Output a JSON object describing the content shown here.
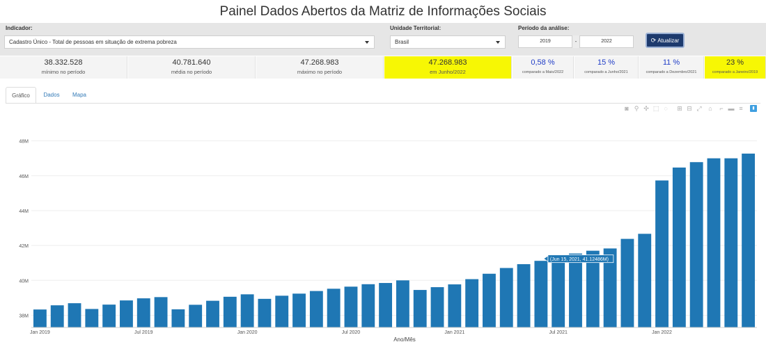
{
  "page": {
    "title": "Painel Dados Abertos da Matriz de Informações Sociais"
  },
  "filters": {
    "indicator_label": "Indicador:",
    "indicator_value": "Cadastro Único - Total de pessoas em situação de extrema pobreza",
    "territory_label": "Unidade Territorial:",
    "territory_value": "Brasil",
    "period_label": "Período da análise:",
    "period_start": "2019",
    "period_sep": "-",
    "period_end": "2022",
    "update_button": "Atualizar"
  },
  "stats": [
    {
      "value": "38.332.528",
      "label": "mínimo no período"
    },
    {
      "value": "40.781.640",
      "label": "média no período"
    },
    {
      "value": "47.268.983",
      "label": "máximo no período"
    },
    {
      "value": "47.268.983",
      "label": "em Junho/2022"
    },
    {
      "value": "0,58 %",
      "label": "comparado a Maio/2022"
    },
    {
      "value": "15 %",
      "label": "comparado a Junho/2021"
    },
    {
      "value": "11 %",
      "label": "comparado a Dezembro/2021"
    },
    {
      "value": "23 %",
      "label": "comparado a Janeiro/2019"
    }
  ],
  "tabs": [
    {
      "label": "Gráfico"
    },
    {
      "label": "Dados"
    },
    {
      "label": "Mapa"
    }
  ],
  "colors": {
    "bar": "#1f77b4",
    "highlight": "#f7f704",
    "accent": "#1f3cc7",
    "button": "#1d3a6d"
  },
  "modebar_icons": [
    "camera-icon",
    "zoom-icon",
    "pan-icon",
    "box-select-icon",
    "lasso-icon",
    "zoom-in-icon",
    "zoom-out-icon",
    "autoscale-icon",
    "reset-axes-icon",
    "spike-lines-icon",
    "hover-closest-icon",
    "hover-compare-icon",
    "plotly-logo-icon"
  ],
  "chart_data": {
    "type": "bar",
    "xlabel": "Ano/Mês",
    "ylabel": "",
    "ylim": [
      37.3,
      49.5
    ],
    "y_ticks": [
      38,
      40,
      42,
      44,
      46,
      48
    ],
    "y_tick_labels": [
      "38M",
      "40M",
      "42M",
      "44M",
      "46M",
      "48M"
    ],
    "x_tick_labels": [
      {
        "index": 0,
        "label": "Jan 2019"
      },
      {
        "index": 6,
        "label": "Jul 2019"
      },
      {
        "index": 12,
        "label": "Jan 2020"
      },
      {
        "index": 18,
        "label": "Jul 2020"
      },
      {
        "index": 24,
        "label": "Jan 2021"
      },
      {
        "index": 30,
        "label": "Jul 2021"
      },
      {
        "index": 36,
        "label": "Jan 2022"
      }
    ],
    "categories": [
      "2019-01",
      "2019-02",
      "2019-03",
      "2019-04",
      "2019-05",
      "2019-06",
      "2019-07",
      "2019-08",
      "2019-09",
      "2019-10",
      "2019-11",
      "2019-12",
      "2020-01",
      "2020-02",
      "2020-03",
      "2020-04",
      "2020-05",
      "2020-06",
      "2020-07",
      "2020-08",
      "2020-09",
      "2020-10",
      "2020-11",
      "2020-12",
      "2021-01",
      "2021-02",
      "2021-03",
      "2021-04",
      "2021-05",
      "2021-06",
      "2021-07",
      "2021-08",
      "2021-09",
      "2021-10",
      "2021-11",
      "2021-12",
      "2022-01",
      "2022-02",
      "2022-03",
      "2022-04",
      "2022-05",
      "2022-06"
    ],
    "values": [
      38.33,
      38.57,
      38.69,
      38.36,
      38.61,
      38.85,
      38.97,
      39.04,
      38.34,
      38.6,
      38.83,
      39.06,
      39.2,
      38.94,
      39.12,
      39.24,
      39.39,
      39.52,
      39.64,
      39.78,
      39.85,
      40.0,
      39.45,
      39.61,
      39.77,
      40.07,
      40.38,
      40.71,
      40.93,
      41.12,
      41.34,
      41.54,
      41.7,
      41.83,
      42.38,
      42.67,
      45.73,
      46.47,
      46.78,
      47.0,
      47.0,
      47.27
    ],
    "tooltip": {
      "index": 29,
      "text": "(Jun 15, 2021, 41.12486M)"
    }
  }
}
